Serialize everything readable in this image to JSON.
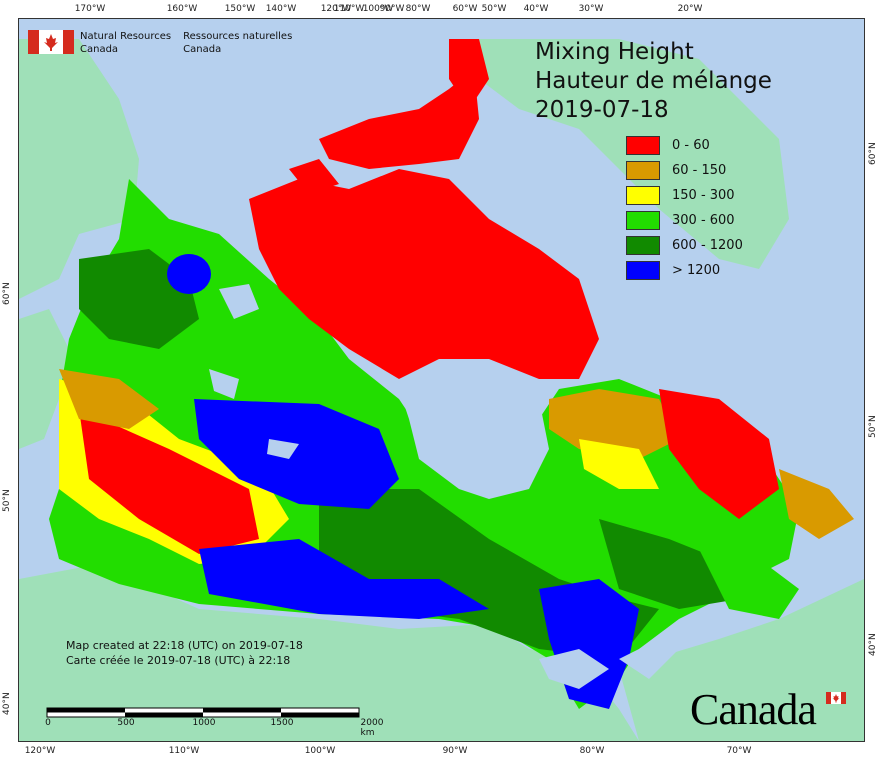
{
  "agency": {
    "name_en_1": "Natural Resources",
    "name_en_2": "Canada",
    "name_fr_1": "Ressources naturelles",
    "name_fr_2": "Canada"
  },
  "title": {
    "line1": "Mixing Height",
    "line2": "Hauteur de mélange",
    "date": "2019-07-18"
  },
  "legend": [
    {
      "label": "0 - 60",
      "color": "#ff0000"
    },
    {
      "label": "60 - 150",
      "color": "#d99a00"
    },
    {
      "label": "150 - 300",
      "color": "#ffff00"
    },
    {
      "label": "300 - 600",
      "color": "#22dd00"
    },
    {
      "label": "600 - 1200",
      "color": "#118a00"
    },
    {
      "label": "> 1200",
      "color": "#0000ff"
    }
  ],
  "created": {
    "en": "Map created at 22:18 (UTC) on 2019-07-18",
    "fr": "Carte créée le 2019-07-18 (UTC) à 22:18"
  },
  "scale": {
    "labels": [
      "0",
      "500",
      "1000",
      "1500",
      "2000 km"
    ]
  },
  "ticks": {
    "top": [
      "170°W",
      "160°W",
      "150°W",
      "140°W",
      "120°W",
      "110°W",
      "100°W",
      "90°W",
      "80°W",
      "60°W",
      "50°W",
      "40°W",
      "30°W",
      "20°W"
    ],
    "bottom": [
      "120°W",
      "110°W",
      "100°W",
      "90°W",
      "80°W",
      "70°W"
    ],
    "left": [
      "60°N",
      "50°N",
      "40°N"
    ],
    "right": [
      "60°N",
      "50°N",
      "40°N"
    ]
  },
  "wordmark": "Canada",
  "colors": {
    "water": "#b6d0ee",
    "land_other": "#9fe0b8"
  }
}
